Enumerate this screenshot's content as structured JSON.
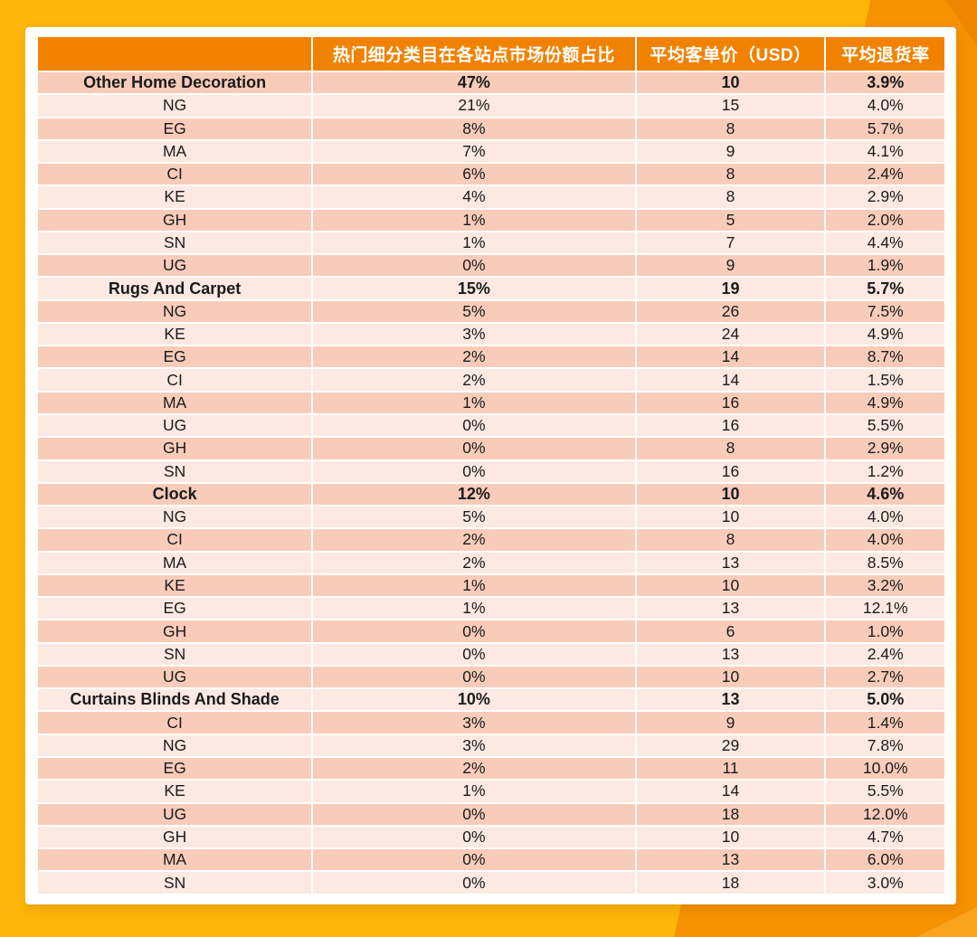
{
  "colors": {
    "bg-gold": "#FDB609",
    "bg-orange": "#F79200",
    "bg-orange-deep": "#EF8600",
    "bg-orange-light": "#FAA41E",
    "header-bg": "#F18200",
    "header-text": "#FFFFFF",
    "band-dark": "#F8CCB9",
    "band-light": "#FCE9E1",
    "text": "#1B1B1B"
  },
  "chart_data": {
    "type": "table",
    "columns": [
      "",
      "热门细分类目在各站点市场份额占比",
      "平均客单价（USD）",
      "平均退货率"
    ],
    "rows": [
      {
        "label": "Other Home Decoration",
        "category": true,
        "share": "47%",
        "aov": "10",
        "return_rate": "3.9%"
      },
      {
        "label": "NG",
        "category": false,
        "share": "21%",
        "aov": "15",
        "return_rate": "4.0%"
      },
      {
        "label": "EG",
        "category": false,
        "share": "8%",
        "aov": "8",
        "return_rate": "5.7%"
      },
      {
        "label": "MA",
        "category": false,
        "share": "7%",
        "aov": "9",
        "return_rate": "4.1%"
      },
      {
        "label": "CI",
        "category": false,
        "share": "6%",
        "aov": "8",
        "return_rate": "2.4%"
      },
      {
        "label": "KE",
        "category": false,
        "share": "4%",
        "aov": "8",
        "return_rate": "2.9%"
      },
      {
        "label": "GH",
        "category": false,
        "share": "1%",
        "aov": "5",
        "return_rate": "2.0%"
      },
      {
        "label": "SN",
        "category": false,
        "share": "1%",
        "aov": "7",
        "return_rate": "4.4%"
      },
      {
        "label": "UG",
        "category": false,
        "share": "0%",
        "aov": "9",
        "return_rate": "1.9%"
      },
      {
        "label": "Rugs And Carpet",
        "category": true,
        "share": "15%",
        "aov": "19",
        "return_rate": "5.7%"
      },
      {
        "label": "NG",
        "category": false,
        "share": "5%",
        "aov": "26",
        "return_rate": "7.5%"
      },
      {
        "label": "KE",
        "category": false,
        "share": "3%",
        "aov": "24",
        "return_rate": "4.9%"
      },
      {
        "label": "EG",
        "category": false,
        "share": "2%",
        "aov": "14",
        "return_rate": "8.7%"
      },
      {
        "label": "CI",
        "category": false,
        "share": "2%",
        "aov": "14",
        "return_rate": "1.5%"
      },
      {
        "label": "MA",
        "category": false,
        "share": "1%",
        "aov": "16",
        "return_rate": "4.9%"
      },
      {
        "label": "UG",
        "category": false,
        "share": "0%",
        "aov": "16",
        "return_rate": "5.5%"
      },
      {
        "label": "GH",
        "category": false,
        "share": "0%",
        "aov": "8",
        "return_rate": "2.9%"
      },
      {
        "label": "SN",
        "category": false,
        "share": "0%",
        "aov": "16",
        "return_rate": "1.2%"
      },
      {
        "label": "Clock",
        "category": true,
        "share": "12%",
        "aov": "10",
        "return_rate": "4.6%"
      },
      {
        "label": "NG",
        "category": false,
        "share": "5%",
        "aov": "10",
        "return_rate": "4.0%"
      },
      {
        "label": "CI",
        "category": false,
        "share": "2%",
        "aov": "8",
        "return_rate": "4.0%"
      },
      {
        "label": "MA",
        "category": false,
        "share": "2%",
        "aov": "13",
        "return_rate": "8.5%"
      },
      {
        "label": "KE",
        "category": false,
        "share": "1%",
        "aov": "10",
        "return_rate": "3.2%"
      },
      {
        "label": "EG",
        "category": false,
        "share": "1%",
        "aov": "13",
        "return_rate": "12.1%"
      },
      {
        "label": "GH",
        "category": false,
        "share": "0%",
        "aov": "6",
        "return_rate": "1.0%"
      },
      {
        "label": "SN",
        "category": false,
        "share": "0%",
        "aov": "13",
        "return_rate": "2.4%"
      },
      {
        "label": "UG",
        "category": false,
        "share": "0%",
        "aov": "10",
        "return_rate": "2.7%"
      },
      {
        "label": "Curtains Blinds And Shade",
        "category": true,
        "share": "10%",
        "aov": "13",
        "return_rate": "5.0%"
      },
      {
        "label": "CI",
        "category": false,
        "share": "3%",
        "aov": "9",
        "return_rate": "1.4%"
      },
      {
        "label": "NG",
        "category": false,
        "share": "3%",
        "aov": "29",
        "return_rate": "7.8%"
      },
      {
        "label": "EG",
        "category": false,
        "share": "2%",
        "aov": "11",
        "return_rate": "10.0%"
      },
      {
        "label": "KE",
        "category": false,
        "share": "1%",
        "aov": "14",
        "return_rate": "5.5%"
      },
      {
        "label": "UG",
        "category": false,
        "share": "0%",
        "aov": "18",
        "return_rate": "12.0%"
      },
      {
        "label": "GH",
        "category": false,
        "share": "0%",
        "aov": "10",
        "return_rate": "4.7%"
      },
      {
        "label": "MA",
        "category": false,
        "share": "0%",
        "aov": "13",
        "return_rate": "6.0%"
      },
      {
        "label": "SN",
        "category": false,
        "share": "0%",
        "aov": "18",
        "return_rate": "3.0%"
      }
    ]
  }
}
